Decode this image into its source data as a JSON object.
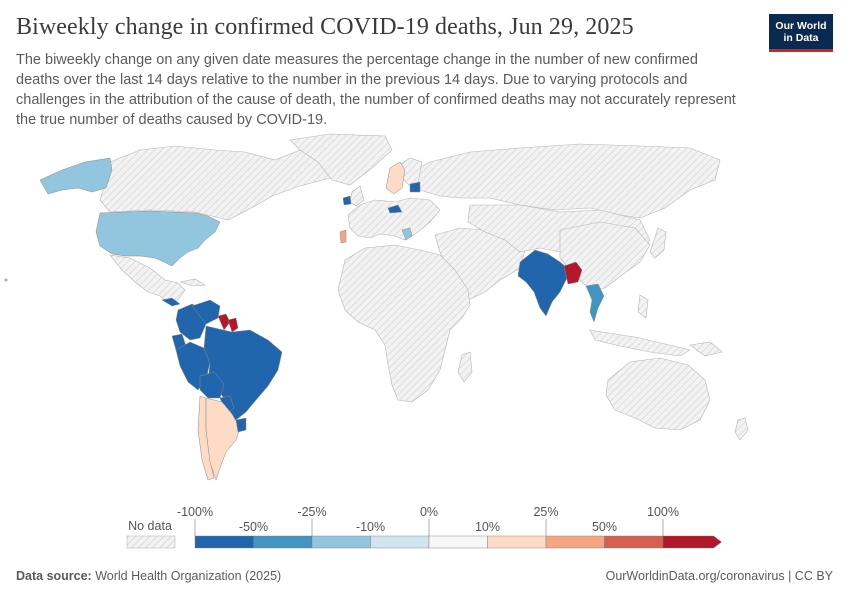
{
  "header": {
    "title": "Biweekly change in confirmed COVID-19 deaths, Jun 29, 2025",
    "subtitle": "The biweekly change on any given date measures the percentage change in the number of new confirmed deaths over the last 14 days relative to the number in the previous 14 days. Due to varying protocols and challenges in the attribution of the cause of death, the number of confirmed deaths may not accurately represent the true number of deaths caused by COVID-19.",
    "logo_line1": "Our World",
    "logo_line2": "in Data"
  },
  "legend": {
    "no_data_label": "No data",
    "upper_ticks": [
      "-100%",
      "-25%",
      "0%",
      "25%",
      "100%"
    ],
    "lower_ticks": [
      "-50%",
      "-10%",
      "10%",
      "50%"
    ],
    "bin_colors": [
      "#2166ac",
      "#4393c3",
      "#92c5de",
      "#d1e5f0",
      "#f7f7f7",
      "#fddbc7",
      "#f4a582",
      "#d6604d",
      "#b2182b"
    ]
  },
  "colors": {
    "no_data_fill": "#f1f1f1",
    "border": "#9a9a9a",
    "ocean": "#ffffff"
  },
  "map_data": {
    "countries": [
      {
        "name": "United States",
        "bin": 2
      },
      {
        "name": "Alaska",
        "bin": 2
      },
      {
        "name": "Brazil",
        "bin": 0
      },
      {
        "name": "Peru",
        "bin": 0
      },
      {
        "name": "Colombia",
        "bin": 0
      },
      {
        "name": "Venezuela",
        "bin": 0
      },
      {
        "name": "Ecuador",
        "bin": 0
      },
      {
        "name": "Bolivia",
        "bin": 0
      },
      {
        "name": "Paraguay",
        "bin": 0
      },
      {
        "name": "Panama",
        "bin": 0
      },
      {
        "name": "Guyana",
        "bin": 8
      },
      {
        "name": "Suriname",
        "bin": 8
      },
      {
        "name": "Argentina",
        "bin": 5
      },
      {
        "name": "Chile",
        "bin": 5
      },
      {
        "name": "Uruguay",
        "bin": 0
      },
      {
        "name": "India",
        "bin": 0
      },
      {
        "name": "Bangladesh",
        "bin": 8
      },
      {
        "name": "Thailand",
        "bin": 1
      },
      {
        "name": "Sweden",
        "bin": 5
      },
      {
        "name": "Lithuania",
        "bin": 0
      },
      {
        "name": "Ireland",
        "bin": 0
      },
      {
        "name": "Czechia",
        "bin": 0
      },
      {
        "name": "Portugal",
        "bin": 6
      },
      {
        "name": "Croatia",
        "bin": 2
      }
    ]
  },
  "footer": {
    "source_label": "Data source:",
    "source_text": "World Health Organization (2025)",
    "right_text": "OurWorldinData.org/coronavirus | CC BY"
  }
}
